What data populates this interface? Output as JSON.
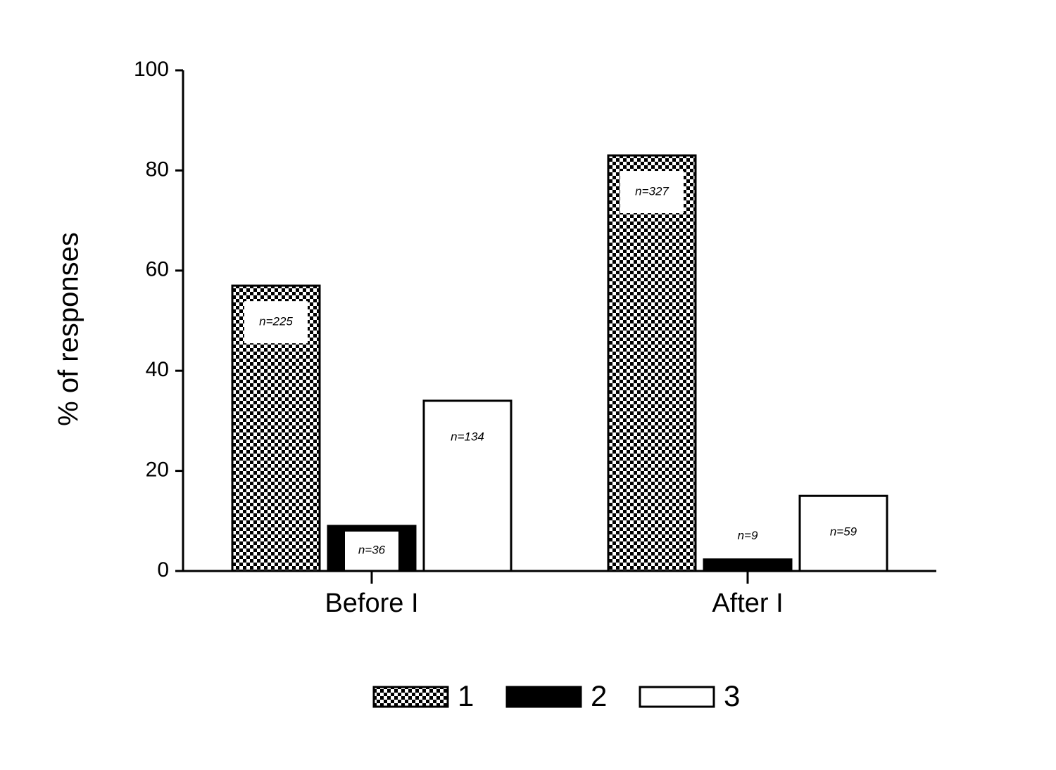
{
  "chart_data": {
    "type": "bar",
    "y_label": "% of responses",
    "categories": [
      "Before I",
      "After I"
    ],
    "series": [
      {
        "name": "1",
        "color": "#000000",
        "pattern": "checker",
        "values": [
          57,
          83
        ],
        "annotations": [
          "n=225",
          "n=327"
        ]
      },
      {
        "name": "2",
        "color": "#000000",
        "pattern": "solid",
        "values": [
          9,
          2.3
        ],
        "annotations": [
          "n=36",
          "n=9"
        ]
      },
      {
        "name": "3",
        "color": "#ffffff",
        "pattern": "solid",
        "values": [
          34,
          15
        ],
        "annotations": [
          "n=134",
          "n=59"
        ]
      }
    ],
    "ylim": [
      0,
      100
    ],
    "yticks": [
      0,
      20,
      40,
      60,
      80,
      100
    ],
    "grid": false,
    "legend": "bottom"
  }
}
